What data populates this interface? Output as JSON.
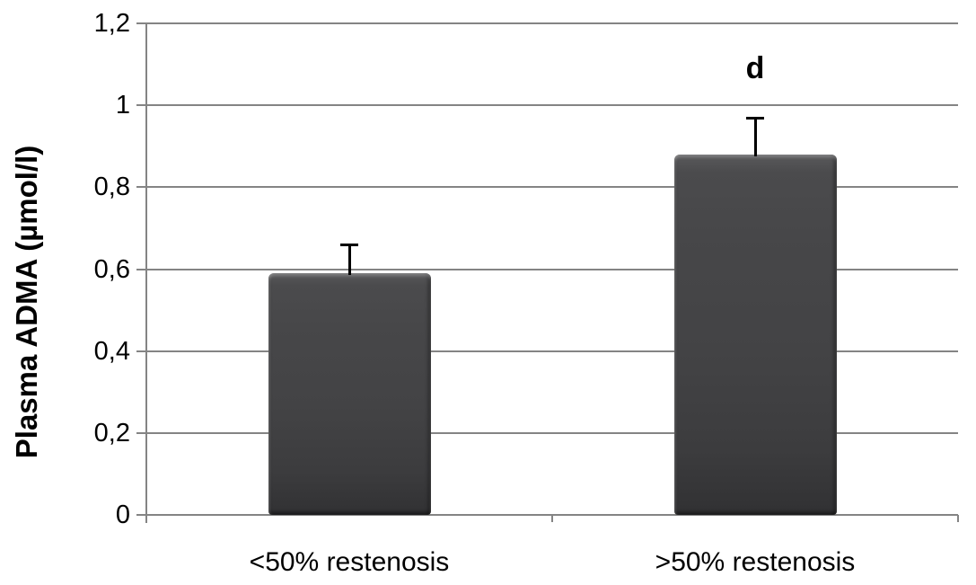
{
  "figure": {
    "background_color": "#ffffff"
  },
  "chart_data": {
    "type": "bar",
    "title": "",
    "xlabel": "",
    "ylabel": "Plasma ADMA (µmol/l)",
    "categories": [
      "<50% restenosis",
      ">50% restenosis"
    ],
    "values": [
      0.59,
      0.88
    ],
    "error_upper": [
      0.66,
      0.97
    ],
    "annotations": [
      {
        "text": "d",
        "category_index": 1,
        "y_value": 1.09
      }
    ],
    "ylim": [
      0,
      1.2
    ],
    "ytick_values": [
      0,
      0.2,
      0.4,
      0.6,
      0.8,
      1,
      1.2
    ],
    "ytick_labels": [
      "0",
      "0,2",
      "0,4",
      "0,6",
      "0,8",
      "1",
      "1,2"
    ],
    "grid": "horizontal-gridlines",
    "legend": "none",
    "colors": {
      "bar_fill": "#424244",
      "bar_fill_top": "#59595b",
      "bar_fill_bottom": "#313133",
      "gridline": "#848484",
      "axis": "#848484",
      "error_bar": "#000000",
      "text": "#000000"
    }
  }
}
